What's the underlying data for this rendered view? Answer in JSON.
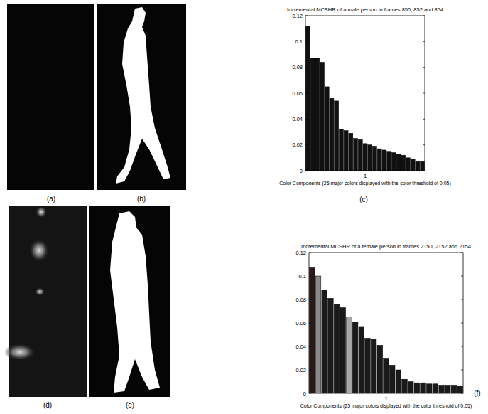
{
  "panel_labels": [
    "(a)",
    "(b)",
    "(c)",
    "(d)",
    "(e)",
    "(f)"
  ],
  "chart_data": [
    {
      "type": "bar",
      "title": "Incremental MCSHR of a male person in frames 850, 852 and 854",
      "xlabel": "Color Components (25 major colors displayed with the color threshold of 0.05)",
      "x": [
        0.616,
        0.648,
        0.68,
        0.712,
        0.744,
        0.776,
        0.808,
        0.84,
        0.872,
        0.904,
        0.936,
        0.968,
        1,
        1.032,
        1.064,
        1.096,
        1.128,
        1.16,
        1.192,
        1.224,
        1.256,
        1.288,
        1.32,
        1.352,
        1.384
      ],
      "values": [
        0.112,
        0.087,
        0.087,
        0.084,
        0.065,
        0.056,
        0.054,
        0.032,
        0.031,
        0.029,
        0.025,
        0.024,
        0.021,
        0.02,
        0.019,
        0.017,
        0.016,
        0.015,
        0.014,
        0.013,
        0.012,
        0.01,
        0.009,
        0.007,
        0.007
      ],
      "xlim": [
        0.6,
        1.4
      ],
      "xticks": [
        1
      ],
      "ylim": [
        0,
        0.12
      ],
      "yticks": [
        0,
        0.02,
        0.04,
        0.06,
        0.08,
        0.1,
        0.12
      ],
      "color": "#111111"
    },
    {
      "type": "bar",
      "title": "Incremental MCSHR of a female person in frames 2150, 2152 and 2154",
      "xlabel": "Color Components (25 major colors displayed with the color threshold of 0.05)",
      "x": [
        0.616,
        0.648,
        0.68,
        0.712,
        0.744,
        0.776,
        0.808,
        0.84,
        0.872,
        0.904,
        0.936,
        0.968,
        1,
        1.032,
        1.064,
        1.096,
        1.128,
        1.16,
        1.192,
        1.224,
        1.256,
        1.288,
        1.32,
        1.352,
        1.384
      ],
      "values": [
        0.107,
        0.1,
        0.088,
        0.081,
        0.076,
        0.073,
        0.065,
        0.061,
        0.057,
        0.047,
        0.046,
        0.041,
        0.03,
        0.024,
        0.02,
        0.012,
        0.01,
        0.009,
        0.009,
        0.008,
        0.008,
        0.007,
        0.007,
        0.007,
        0.006
      ],
      "xlim": [
        0.6,
        1.4
      ],
      "xticks": [
        1
      ],
      "ylim": [
        0,
        0.12
      ],
      "yticks": [
        0,
        0.02,
        0.04,
        0.06,
        0.08,
        0.1,
        0.12
      ],
      "colors": [
        "#2a1a1a",
        "#8a8a8a",
        "#1a1a1a",
        "#1a1a1a",
        "#1a1a1a",
        "#1a1a1a",
        "#a8a8a8",
        "#1a1a1a",
        "#1a1a1a",
        "#1a1a1a",
        "#1a1a1a",
        "#1a1a1a",
        "#1a1a1a",
        "#1a1a1a",
        "#1a1a1a",
        "#1a1a1a",
        "#1a1a1a",
        "#1a1a1a",
        "#1a1a1a",
        "#1a1a1a",
        "#1a1a1a",
        "#1a1a1a",
        "#1a1a1a",
        "#1a1a1a",
        "#1a1a1a"
      ]
    }
  ]
}
